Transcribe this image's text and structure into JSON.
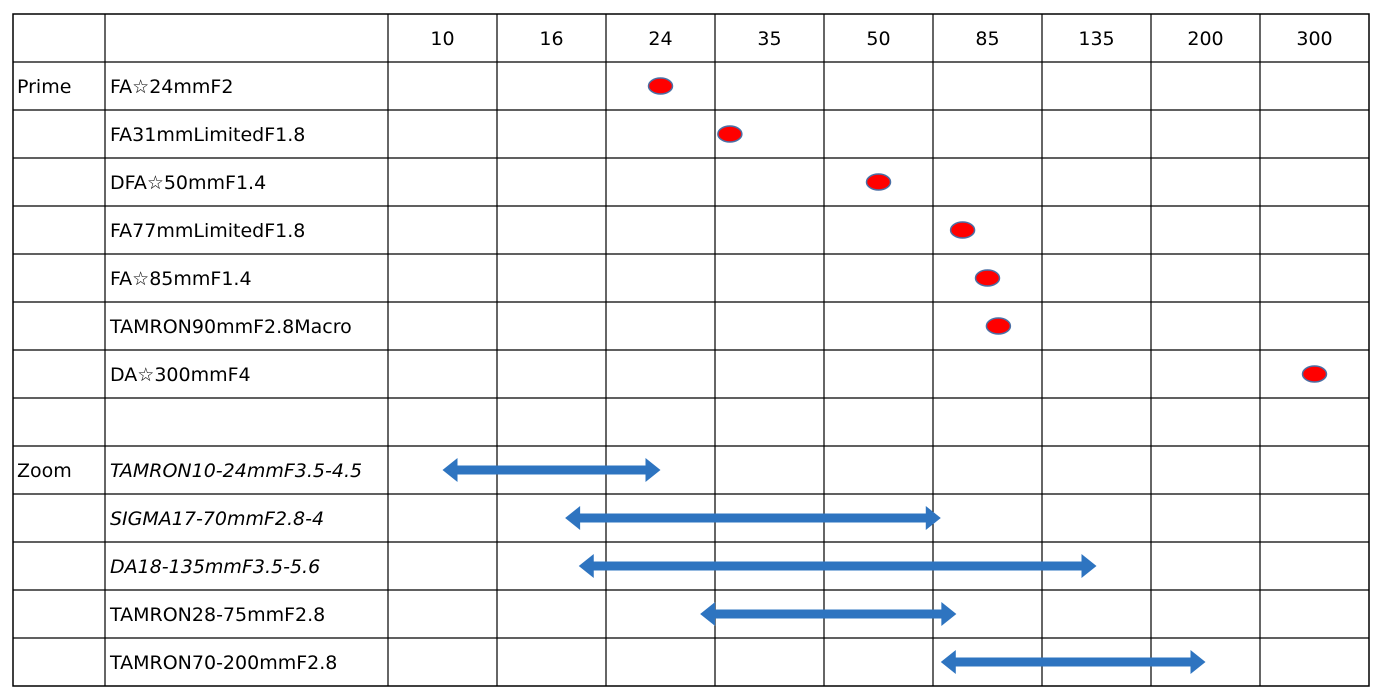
{
  "chart_data": {
    "type": "table",
    "focal_lengths": [
      "10",
      "16",
      "24",
      "35",
      "50",
      "85",
      "135",
      "200",
      "300"
    ],
    "groups": [
      {
        "label": "Prime",
        "start_row": 0
      },
      {
        "label": "Zoom",
        "start_row": 8
      }
    ],
    "rows": [
      {
        "name": "FA☆24mmF2",
        "kind": "prime",
        "focal": 24,
        "italic": false
      },
      {
        "name": "FA31mmLimitedF1.8",
        "kind": "prime",
        "focal": 31,
        "italic": false
      },
      {
        "name": "DFA☆50mmF1.4",
        "kind": "prime",
        "focal": 50,
        "italic": false
      },
      {
        "name": "FA77mmLimitedF1.8",
        "kind": "prime",
        "focal": 77,
        "italic": false
      },
      {
        "name": "FA☆85mmF1.4",
        "kind": "prime",
        "focal": 85,
        "italic": false
      },
      {
        "name": "TAMRON90mmF2.8Macro",
        "kind": "prime",
        "focal": 90,
        "italic": false
      },
      {
        "name": "DA☆300mmF4",
        "kind": "prime",
        "focal": 300,
        "italic": false
      },
      {
        "name": "",
        "kind": "empty",
        "italic": false
      },
      {
        "name": "TAMRON10-24mmF3.5-4.5",
        "kind": "zoom",
        "from": 10,
        "to": 24,
        "italic": true
      },
      {
        "name": "SIGMA17-70mmF2.8-4",
        "kind": "zoom",
        "from": 17,
        "to": 70,
        "italic": true
      },
      {
        "name": "DA18-135mmF3.5-5.6",
        "kind": "zoom",
        "from": 18,
        "to": 135,
        "italic": true
      },
      {
        "name": "TAMRON28-75mmF2.8",
        "kind": "zoom",
        "from": 28,
        "to": 75,
        "italic": false
      },
      {
        "name": "TAMRON70-200mmF2.8",
        "kind": "zoom",
        "from": 70,
        "to": 200,
        "italic": false
      }
    ],
    "colors": {
      "prime_marker": "#ff0000",
      "prime_marker_stroke": "#4a6fa5",
      "zoom_arrow": "#2e74c0",
      "grid": "#000000"
    }
  }
}
